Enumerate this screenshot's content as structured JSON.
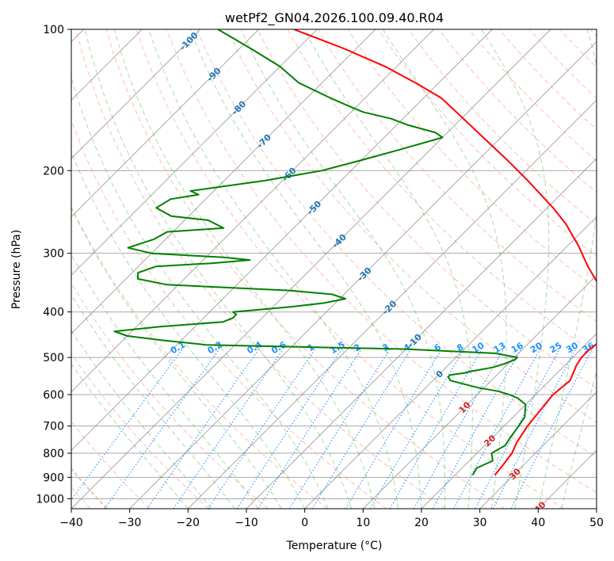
{
  "chart_data": {
    "type": "line",
    "subtype": "skew-t log-p diagram",
    "title": "wetPf2_GN04.2026.100.09.40.R04",
    "xlabel": "Temperature (°C)",
    "ylabel": "Pressure (hPa)",
    "xlim": [
      -40,
      50
    ],
    "ylim": [
      1050,
      100
    ],
    "x_ticks": [
      -40,
      -30,
      -20,
      -10,
      0,
      10,
      20,
      30,
      40,
      50
    ],
    "x_tick_labels": [
      "−40",
      "−30",
      "−20",
      "−10",
      "0",
      "10",
      "20",
      "30",
      "40",
      "50"
    ],
    "y_ticks": [
      100,
      200,
      300,
      400,
      500,
      600,
      700,
      800,
      900,
      1000
    ],
    "y_tick_labels": [
      "100",
      "200",
      "300",
      "400",
      "500",
      "600",
      "700",
      "800",
      "900",
      "1000"
    ],
    "grid": true,
    "colors": {
      "temperature": "#ff0000",
      "dewpoint": "#008000",
      "isotherm": "#8c8c8c",
      "isobar": "#8c8c8c",
      "dry_adiabat": "#fa8072",
      "moist_adiabat": "#2ca02c",
      "mixing_ratio": "#1e90ff",
      "isotherm_label": "#1f77b4",
      "isotherm_label_warm": "#d62728",
      "ref_curve": "#d2b48c"
    },
    "series": [
      {
        "name": "Temperature",
        "pressure": [
          890,
          850,
          800,
          760,
          700,
          650,
          600,
          560,
          520,
          500,
          480,
          460,
          450,
          420,
          400,
          370,
          350,
          320,
          290,
          260,
          240,
          210,
          190,
          170,
          150,
          140,
          130,
          120,
          110,
          100
        ],
        "temperature": [
          26.8,
          26.5,
          26.0,
          25.0,
          24.0,
          23.5,
          23.0,
          23.5,
          22.0,
          21.5,
          21.5,
          22.0,
          22.0,
          19.0,
          17.0,
          15.0,
          12.0,
          7.0,
          2.0,
          -4.0,
          -9.0,
          -18.0,
          -25.0,
          -33.0,
          -42.0,
          -47.0,
          -54.0,
          -62.0,
          -72.0,
          -84.0
        ]
      },
      {
        "name": "Dewpoint",
        "pressure": [
          890,
          860,
          830,
          800,
          770,
          740,
          700,
          670,
          650,
          630,
          610,
          600,
          590,
          580,
          570,
          560,
          550,
          545,
          540,
          535,
          530,
          525,
          515,
          505,
          500,
          490,
          485,
          480,
          476,
          470,
          460,
          450,
          440,
          430,
          420,
          412,
          405,
          400,
          390,
          383,
          375,
          367,
          360,
          350,
          340,
          330,
          320,
          315,
          310,
          306,
          300,
          292,
          280,
          270,
          265,
          255,
          250,
          240,
          230,
          225,
          221,
          210,
          200,
          190,
          180,
          170,
          166,
          160,
          155,
          150,
          145,
          140,
          130,
          120,
          110,
          100
        ],
        "dewpoint": [
          23.0,
          22.5,
          24.0,
          22.5,
          23.5,
          23.0,
          22.5,
          22.0,
          21.0,
          20.0,
          17.5,
          15.5,
          13.0,
          9.0,
          6.0,
          3.0,
          2.0,
          2.0,
          4.0,
          5.0,
          6.5,
          8.0,
          9.5,
          10.5,
          10.5,
          6.0,
          -2.0,
          -10.0,
          -25.0,
          -45.0,
          -53.0,
          -60.0,
          -63.0,
          -56.0,
          -46.0,
          -45.0,
          -45.0,
          -46.0,
          -37.0,
          -32.0,
          -29.0,
          -32.0,
          -40.0,
          -62.0,
          -68.0,
          -69.0,
          -67.0,
          -58.0,
          -52.0,
          -57.0,
          -70.0,
          -75.0,
          -72.0,
          -71.0,
          -62.0,
          -66.0,
          -73.0,
          -77.0,
          -76.0,
          -72.0,
          -74.0,
          -63.0,
          -55.0,
          -50.0,
          -45.0,
          -40.0,
          -42.0,
          -48.0,
          -52.0,
          -58.0,
          -62.0,
          -66.0,
          -74.0,
          -80.0,
          -88.0,
          -97.0
        ]
      }
    ],
    "isotherm_labels": [
      "-100",
      "-90",
      "-80",
      "-70",
      "-60",
      "-50",
      "-40",
      "-30",
      "-20",
      "-10",
      "0",
      "10",
      "20",
      "30",
      "40"
    ],
    "mixing_ratio_labels": [
      "0.1",
      "0.2",
      "0.4",
      "0.6",
      "1",
      "1.5",
      "2",
      "3",
      "4",
      "6",
      "8",
      "10",
      "13",
      "16",
      "20",
      "25",
      "30",
      "36"
    ]
  }
}
